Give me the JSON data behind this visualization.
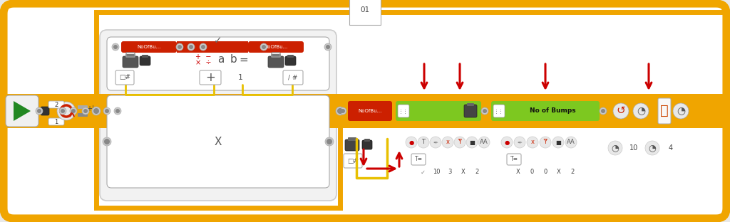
{
  "bg_color": "#e8e8e8",
  "white": "#ffffff",
  "orange": "#f0a500",
  "orange_dark": "#e08800",
  "red_bar": "#cc2000",
  "green_bar": "#7dc820",
  "green_bar_dark": "#5aaa00",
  "gray_light": "#eeeeee",
  "gray_mid": "#dddddd",
  "gray_dark": "#aaaaaa",
  "gray_connector": "#b0b0b0",
  "gray_icon": "#888888",
  "yellow_wire": "#e8c000",
  "red_arrow": "#cc0000",
  "black": "#222222",
  "label_01": "01",
  "noofbu": "NoOfBu...",
  "no_of_bumps": "No of Bumps",
  "check": "✓",
  "cross": "X",
  "a_lbl": "a",
  "b_lbl": "b",
  "eq_lbl": "=",
  "plus_lbl": "+",
  "hash_lbl": "#",
  "num1": "1",
  "lbl_1": "1",
  "lbl_2": "2",
  "lbl_10a": "10",
  "lbl_3": "3",
  "lbl_X": "X",
  "lbl_2b": "2",
  "lbl_X2": "X",
  "lbl_0a": "0",
  "lbl_0b": "0",
  "lbl_X3": "X",
  "lbl_2c": "2",
  "lbl_10b": "10",
  "lbl_4": "4"
}
